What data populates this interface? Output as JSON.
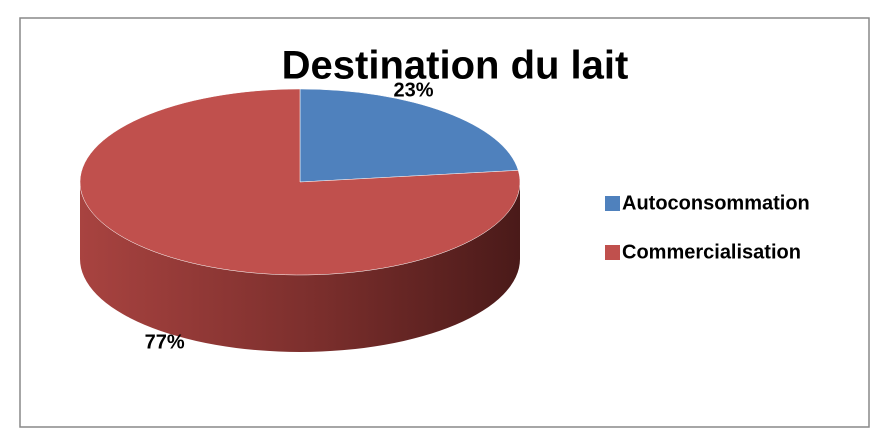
{
  "chart_data": {
    "type": "pie",
    "title": "Destination du lait",
    "categories": [
      "Autoconsommation",
      "Commercialisation"
    ],
    "values": [
      23,
      77
    ],
    "value_labels": [
      "23%",
      "77%"
    ],
    "colors": [
      "#4f81bd",
      "#c0504d"
    ],
    "legend": "right"
  }
}
